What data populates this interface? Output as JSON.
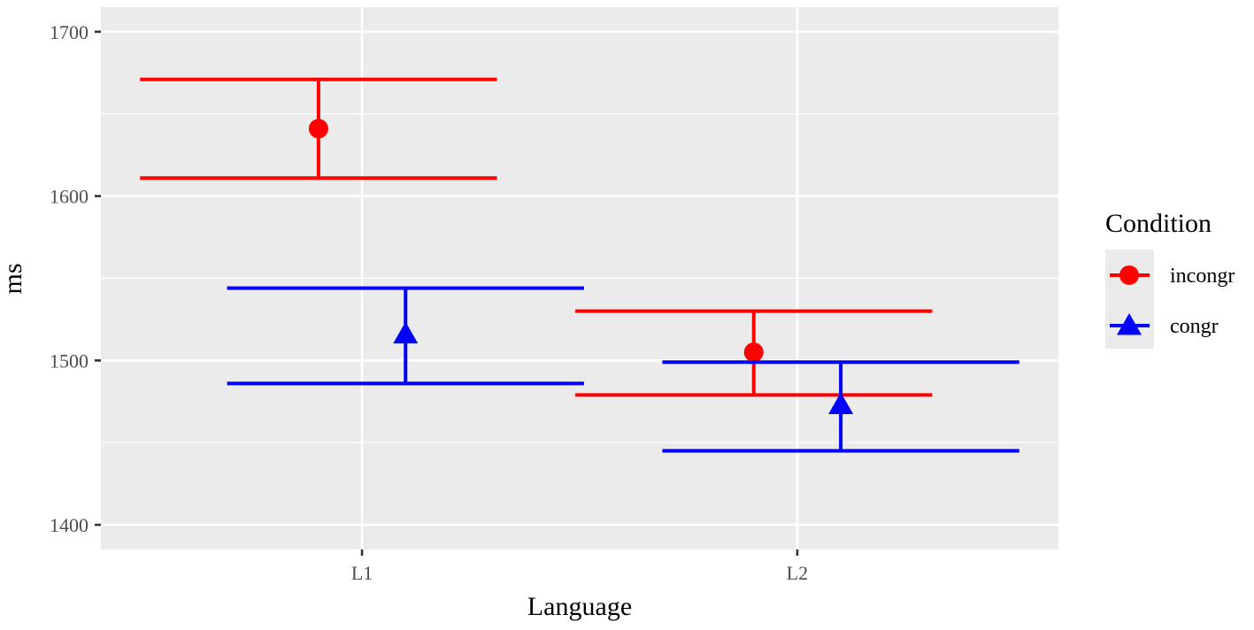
{
  "chart_data": {
    "type": "scatter",
    "error_bars": true,
    "categories": [
      "L1",
      "L2"
    ],
    "xlabel": "Language",
    "ylabel": "ms",
    "ylim": [
      1385,
      1715
    ],
    "yticks": [
      1400,
      1500,
      1600,
      1700
    ],
    "grid": true,
    "legend": {
      "title": "Condition",
      "position": "right"
    },
    "series": [
      {
        "name": "incongr",
        "color": "#ff0000",
        "marker": "circle",
        "values": [
          1641,
          1505
        ],
        "lower": [
          1611,
          1479
        ],
        "upper": [
          1671,
          1530
        ]
      },
      {
        "name": "congr",
        "color": "#0000ff",
        "marker": "triangle",
        "values": [
          1516,
          1473
        ],
        "lower": [
          1486,
          1445
        ],
        "upper": [
          1544,
          1499
        ]
      }
    ]
  }
}
